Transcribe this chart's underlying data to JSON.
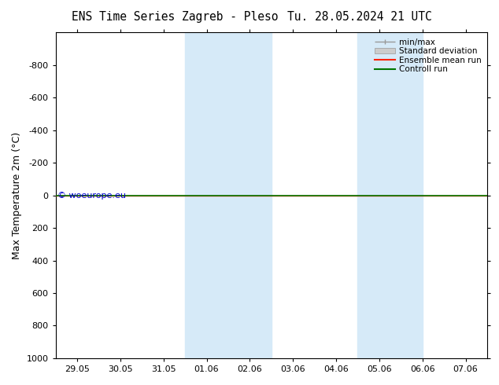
{
  "title_left": "ENS Time Series Zagreb - Pleso",
  "title_right": "Tu. 28.05.2024 21 UTC",
  "ylabel": "Max Temperature 2m (°C)",
  "ylim_bottom": 1000,
  "ylim_top": -1000,
  "yticks": [
    -800,
    -600,
    -400,
    -200,
    0,
    200,
    400,
    600,
    800,
    1000
  ],
  "xtick_labels": [
    "29.05",
    "30.05",
    "31.05",
    "01.06",
    "02.06",
    "03.06",
    "04.06",
    "05.06",
    "06.06",
    "07.06"
  ],
  "shaded_bands": [
    {
      "xmin": 3.0,
      "xmax": 5.0
    },
    {
      "xmin": 7.0,
      "xmax": 8.5
    }
  ],
  "shade_color": "#d6eaf8",
  "control_run_y": 0,
  "ensemble_mean_y": 0,
  "control_run_color": "#007700",
  "ensemble_mean_color": "#ff2200",
  "watermark": "© woeurope.eu",
  "watermark_color": "#0000cc",
  "legend_items": [
    "min/max",
    "Standard deviation",
    "Ensemble mean run",
    "Controll run"
  ],
  "bg_color": "#ffffff",
  "minmax_color": "#999999",
  "stddev_color": "#cccccc"
}
